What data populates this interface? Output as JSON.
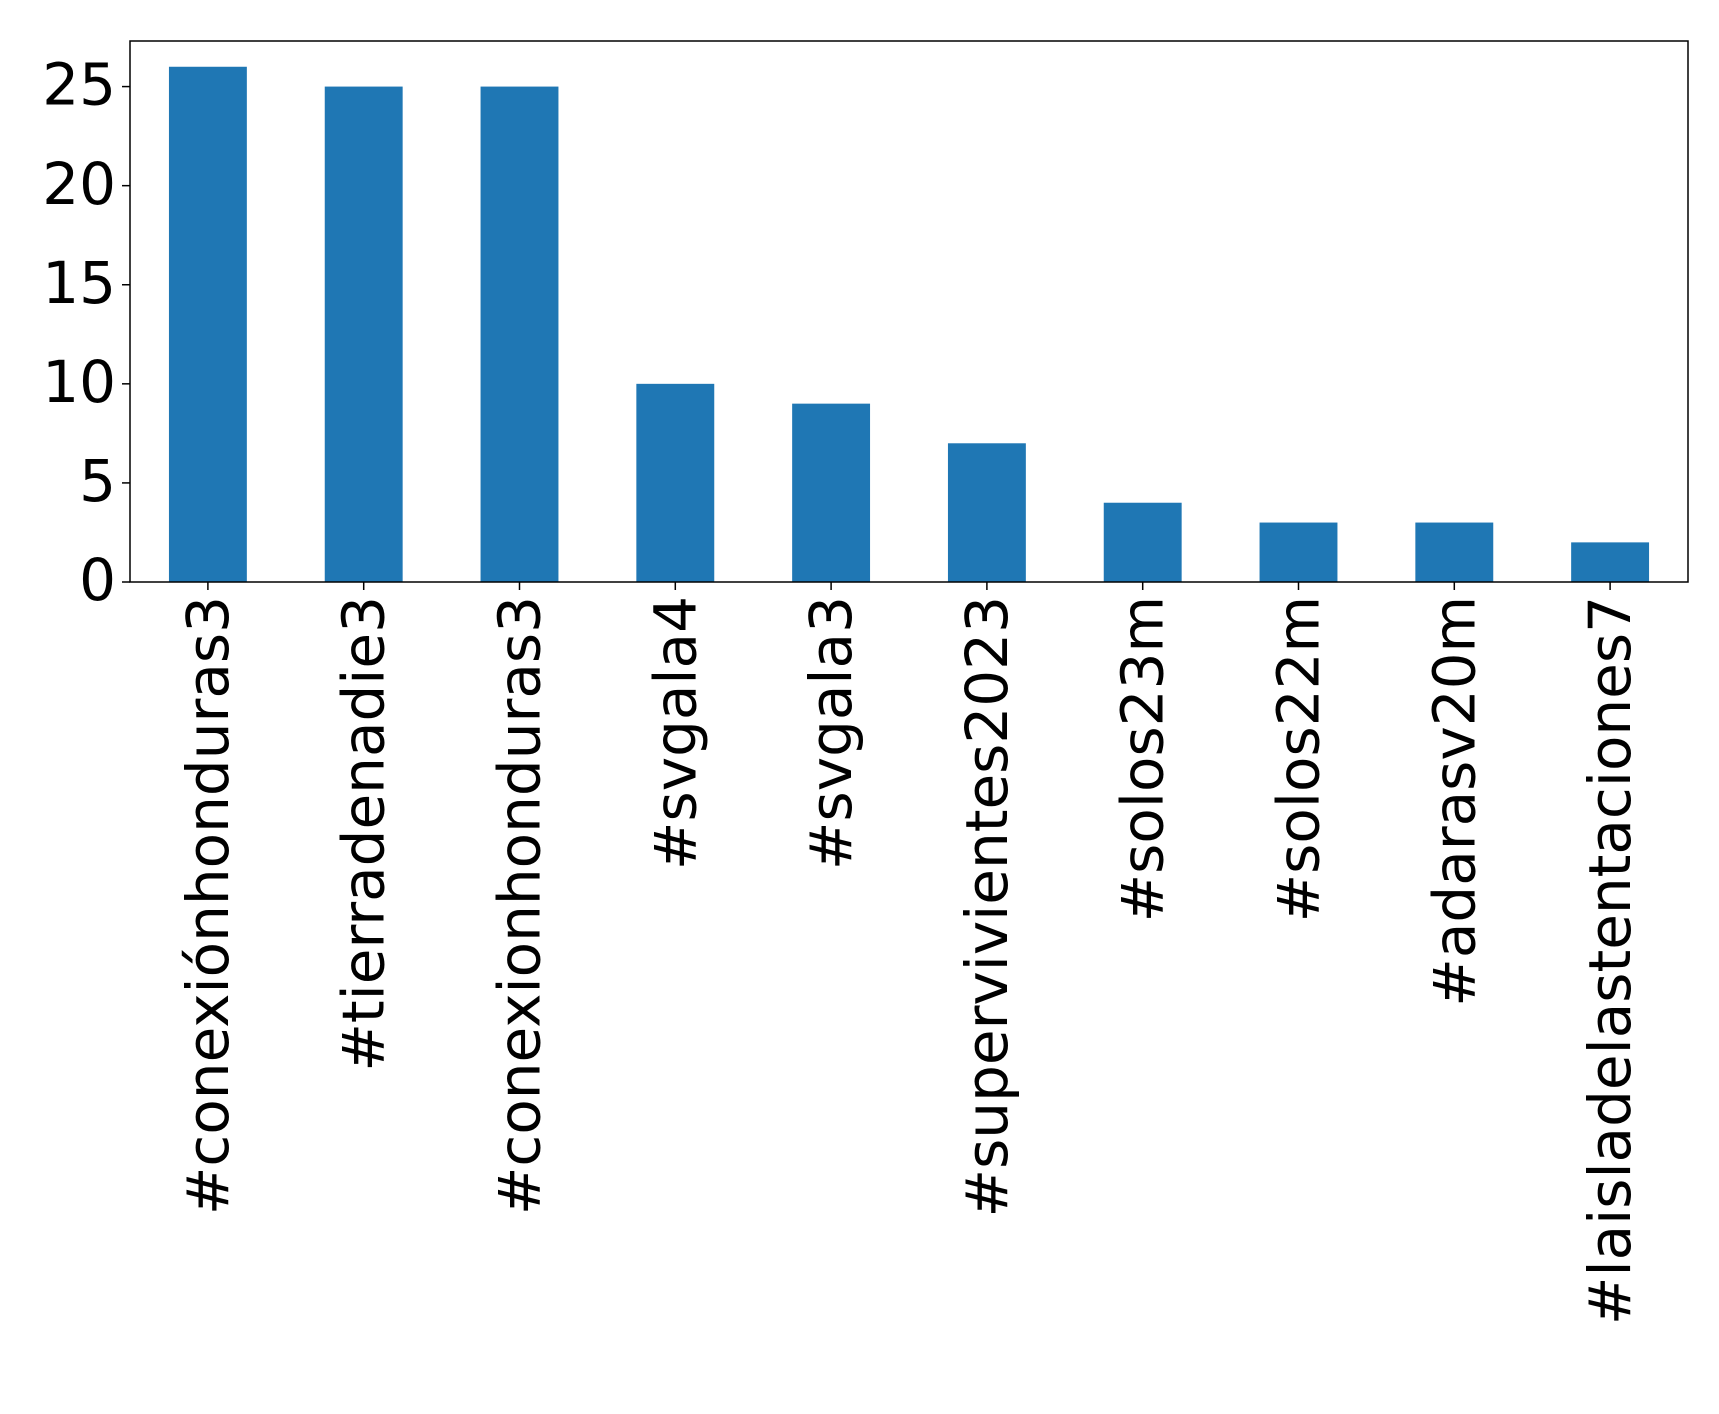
{
  "chart_data": {
    "type": "bar",
    "categories": [
      "#conexiónhonduras3",
      "#tierradenadie3",
      "#conexionhonduras3",
      "#svgala4",
      "#svgala3",
      "#supervivientes2023",
      "#solos23m",
      "#solos22m",
      "#adarasv20m",
      "#laisladelastentaciones7"
    ],
    "values": [
      26,
      25,
      25,
      10,
      9,
      7,
      4,
      3,
      3,
      2
    ],
    "color": "#1f77b4",
    "ylim": [
      0,
      27.3
    ],
    "yticks": [
      0,
      5,
      10,
      15,
      20,
      25
    ],
    "grid": false
  }
}
